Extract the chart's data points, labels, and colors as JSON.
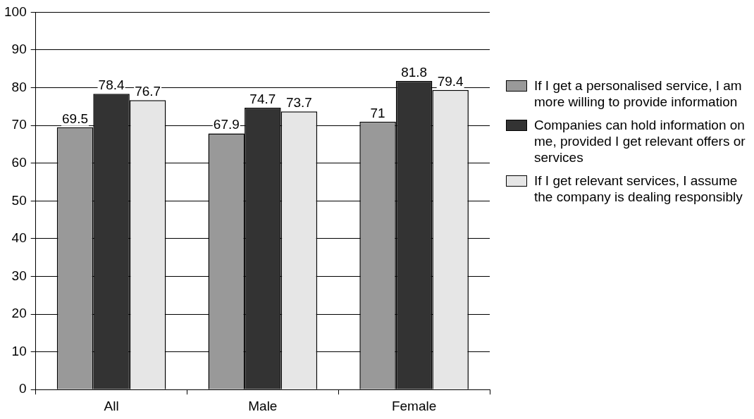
{
  "chart_data": {
    "type": "bar",
    "categories": [
      "All",
      "Male",
      "Female"
    ],
    "series": [
      {
        "name": "If I get a personalised service, I am more willing to provide information",
        "color": "#999999",
        "values": [
          69.5,
          67.9,
          71
        ]
      },
      {
        "name": "Companies can hold information on me, provided I get relevant offers or services",
        "color": "#333333",
        "values": [
          78.4,
          74.7,
          81.8
        ]
      },
      {
        "name": "If I get relevant services, I assume the company is dealing responsibly",
        "color": "#e6e6e6",
        "values": [
          76.7,
          73.7,
          79.4
        ]
      }
    ],
    "ylim": [
      0,
      100
    ],
    "yticks": [
      0,
      10,
      20,
      30,
      40,
      50,
      60,
      70,
      80,
      90,
      100
    ],
    "grid": "y",
    "legend": "right",
    "data_labels": true
  }
}
